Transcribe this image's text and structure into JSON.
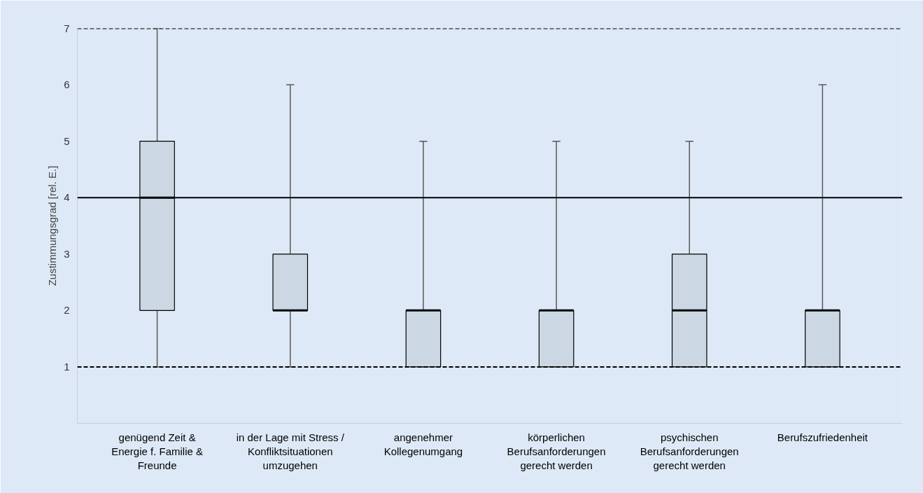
{
  "chart_data": {
    "type": "box",
    "ylabel": "Zustimmungsgrad [rel. E.]",
    "categories": [
      "genügend Zeit &\nEnergie f. Familie &\nFreunde",
      "in der Lage mit Stress /\nKonfliktsituationen\numzugehen",
      "angenehmer\nKollegenumgang",
      "körperlichen\nBerufsanforderungen\ngerecht werden",
      "psychischen\nBerufsanforderungen\ngerecht werden",
      "Berufszufriedenheit"
    ],
    "color": "#cbd8e4",
    "boxes": [
      {
        "low": 1,
        "q1": 2,
        "median": 4,
        "q3": 5,
        "high": 7
      },
      {
        "low": 1,
        "q1": 2,
        "median": 2,
        "q3": 3,
        "high": 6
      },
      {
        "low": 1,
        "q1": 1,
        "median": 2,
        "q3": 2,
        "high": 5
      },
      {
        "low": 1,
        "q1": 1,
        "median": 2,
        "q3": 2,
        "high": 5
      },
      {
        "low": 1,
        "q1": 1,
        "median": 2,
        "q3": 3,
        "high": 5
      },
      {
        "low": 1,
        "q1": 1,
        "median": 2,
        "q3": 2,
        "high": 6
      }
    ],
    "ylim": [
      0,
      7
    ],
    "yticks": [
      1,
      2,
      3,
      4,
      5,
      6,
      7
    ],
    "ref_lines": [
      {
        "axis": "y",
        "value": 1,
        "color": "#000000",
        "line_style": "dashed"
      },
      {
        "axis": "y",
        "value": 4,
        "color": "#000000",
        "line_style": "solid"
      },
      {
        "axis": "y",
        "value": 7,
        "color": "#000000",
        "line_style": "dashed"
      }
    ],
    "grid": false
  }
}
